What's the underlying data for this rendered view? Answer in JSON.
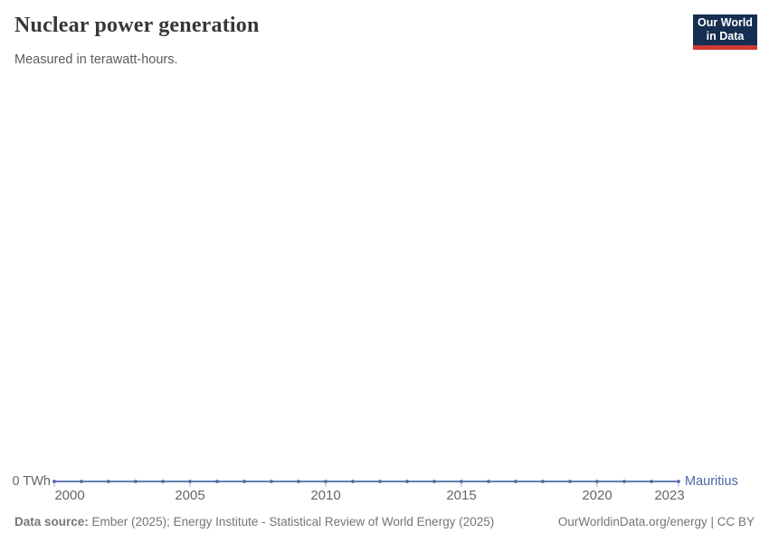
{
  "header": {
    "title": "Nuclear power generation",
    "subtitle": "Measured in terawatt-hours.",
    "logo": {
      "line1": "Our World",
      "line2": "in Data"
    }
  },
  "chart_data": {
    "type": "line",
    "title": "Nuclear power generation",
    "subtitle": "Measured in terawatt-hours.",
    "xlabel": "",
    "ylabel": "terawatt-hours",
    "x": [
      2000,
      2001,
      2002,
      2003,
      2004,
      2005,
      2006,
      2007,
      2008,
      2009,
      2010,
      2011,
      2012,
      2013,
      2014,
      2015,
      2016,
      2017,
      2018,
      2019,
      2020,
      2021,
      2022,
      2023
    ],
    "series": [
      {
        "name": "Mauritius",
        "values": [
          0,
          0,
          0,
          0,
          0,
          0,
          0,
          0,
          0,
          0,
          0,
          0,
          0,
          0,
          0,
          0,
          0,
          0,
          0,
          0,
          0,
          0,
          0,
          0
        ]
      }
    ],
    "x_ticks": [
      2000,
      2005,
      2010,
      2015,
      2020,
      2023
    ],
    "y_zero_label": "0 TWh",
    "ylim": [
      0,
      0
    ],
    "grid": false,
    "markers": true,
    "legend_position": "line-end"
  },
  "footer": {
    "datasource_bold": "Data source:",
    "datasource_rest": " Ember (2025); Energy Institute - Statistical Review of World Energy (2025)",
    "credit": "OurWorldinData.org/energy | CC BY"
  },
  "colors": {
    "line": "#4d6ba8",
    "series_label": "#4a67a3",
    "axis_tick": "#a3b0ca",
    "tick_label": "#666666",
    "title": "#373737",
    "subtitle": "#5b5b5b",
    "footer": "#757575",
    "logo_bg": "#152e52",
    "logo_bar": "#cf3a32"
  }
}
